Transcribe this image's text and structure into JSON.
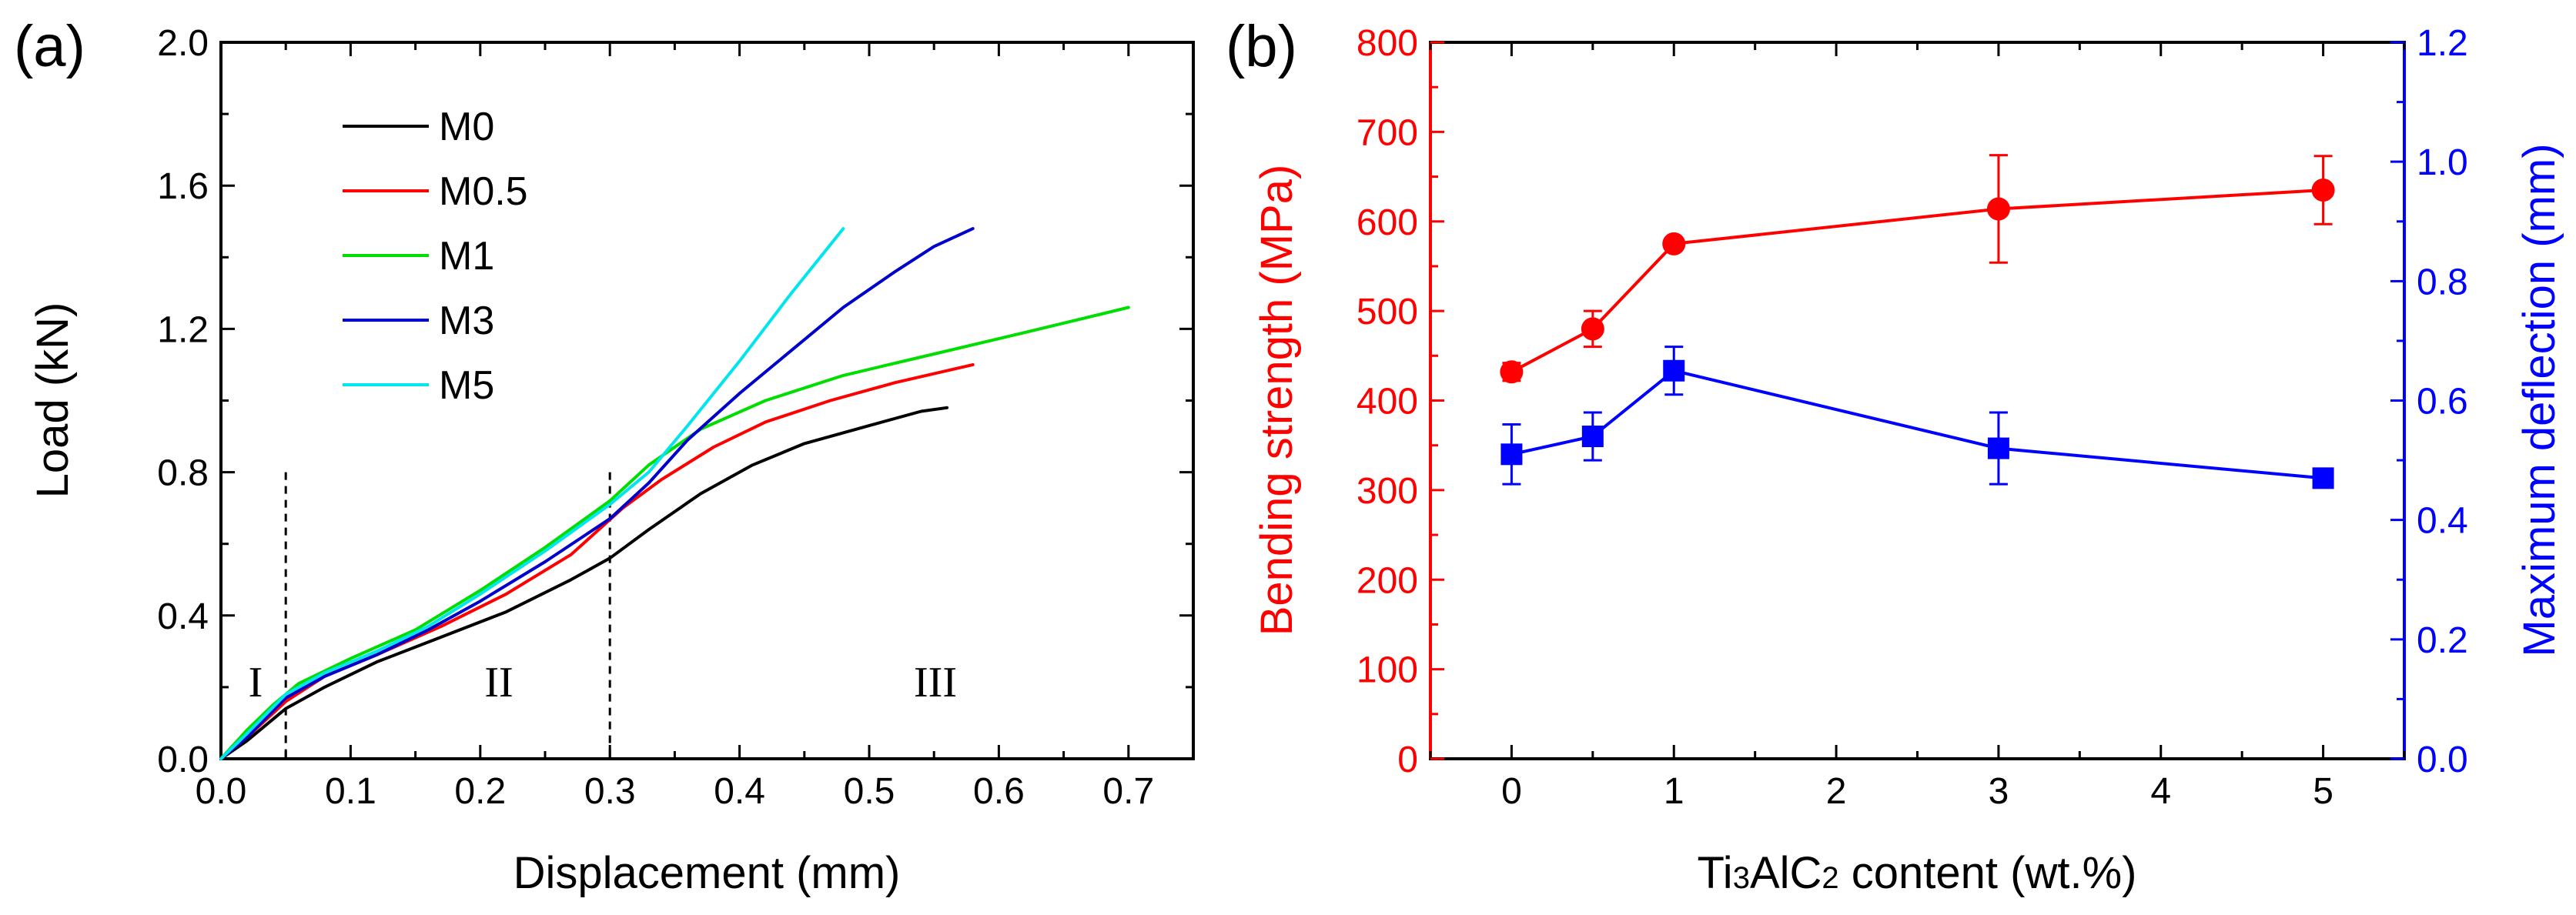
{
  "panel_a": {
    "label": "(a)",
    "region_labels": [
      "I",
      "II",
      "III"
    ],
    "chart_data": {
      "type": "line",
      "title": "",
      "xlabel": "Displacement (mm)",
      "ylabel": "Load (kN)",
      "xlim": [
        0,
        0.75
      ],
      "ylim": [
        0,
        2.0
      ],
      "x_ticks": [
        "0.0",
        "0.1",
        "0.2",
        "0.3",
        "0.4",
        "0.5",
        "0.6",
        "0.7"
      ],
      "y_ticks": [
        "0.0",
        "0.4",
        "0.8",
        "1.2",
        "1.6",
        "2.0"
      ],
      "legend_position": "top-left",
      "region_boundaries": [
        0.05,
        0.3
      ],
      "series": [
        {
          "name": "M0",
          "color": "#000000",
          "x": [
            0,
            0.02,
            0.05,
            0.08,
            0.12,
            0.17,
            0.22,
            0.27,
            0.3,
            0.33,
            0.37,
            0.41,
            0.45,
            0.5,
            0.54,
            0.56
          ],
          "y": [
            0,
            0.05,
            0.14,
            0.2,
            0.27,
            0.34,
            0.41,
            0.5,
            0.56,
            0.64,
            0.74,
            0.82,
            0.88,
            0.93,
            0.97,
            0.98
          ]
        },
        {
          "name": "M0.5",
          "color": "#ff0000",
          "x": [
            0,
            0.02,
            0.05,
            0.08,
            0.12,
            0.17,
            0.22,
            0.27,
            0.31,
            0.34,
            0.38,
            0.42,
            0.47,
            0.52,
            0.58
          ],
          "y": [
            0,
            0.06,
            0.16,
            0.23,
            0.29,
            0.37,
            0.46,
            0.57,
            0.7,
            0.78,
            0.87,
            0.94,
            1.0,
            1.05,
            1.1
          ]
        },
        {
          "name": "M1",
          "color": "#00dd00",
          "x": [
            0,
            0.02,
            0.04,
            0.06,
            0.1,
            0.15,
            0.2,
            0.25,
            0.3,
            0.33,
            0.37,
            0.42,
            0.48,
            0.55,
            0.62,
            0.7
          ],
          "y": [
            0,
            0.08,
            0.15,
            0.21,
            0.28,
            0.36,
            0.47,
            0.59,
            0.72,
            0.82,
            0.92,
            1.0,
            1.07,
            1.13,
            1.19,
            1.26
          ]
        },
        {
          "name": "M3",
          "color": "#0000cc",
          "x": [
            0,
            0.02,
            0.05,
            0.08,
            0.12,
            0.16,
            0.2,
            0.25,
            0.3,
            0.33,
            0.36,
            0.4,
            0.44,
            0.48,
            0.52,
            0.55,
            0.58
          ],
          "y": [
            0,
            0.06,
            0.17,
            0.23,
            0.29,
            0.36,
            0.44,
            0.55,
            0.67,
            0.77,
            0.89,
            1.02,
            1.14,
            1.26,
            1.36,
            1.43,
            1.48
          ]
        },
        {
          "name": "M5",
          "color": "#00e5ee",
          "x": [
            0,
            0.02,
            0.05,
            0.08,
            0.12,
            0.16,
            0.2,
            0.25,
            0.3,
            0.33,
            0.36,
            0.4,
            0.44,
            0.48
          ],
          "y": [
            0,
            0.07,
            0.18,
            0.24,
            0.3,
            0.37,
            0.46,
            0.58,
            0.71,
            0.8,
            0.93,
            1.11,
            1.3,
            1.48
          ]
        }
      ]
    }
  },
  "panel_b": {
    "label": "(b)",
    "chart_data": {
      "type": "line",
      "title": "",
      "xlabel_parts": [
        "Ti",
        "3",
        "AlC",
        "2",
        " content (wt.%)"
      ],
      "ylabel_left": "Bending strength (MPa)",
      "ylabel_right": "Maximum deflection (mm)",
      "xlim": [
        -0.5,
        5.5
      ],
      "ylim_left": [
        0,
        800
      ],
      "ylim_right": [
        0,
        1.2
      ],
      "x_ticks": [
        "0",
        "1",
        "2",
        "3",
        "4",
        "5"
      ],
      "y_ticks_left": [
        "0",
        "100",
        "200",
        "300",
        "400",
        "500",
        "600",
        "700",
        "800"
      ],
      "y_ticks_right": [
        "0.0",
        "0.2",
        "0.4",
        "0.6",
        "0.8",
        "1.0",
        "1.2"
      ],
      "x_categories": [
        "0",
        "0.5",
        "1",
        "3",
        "5"
      ],
      "series": [
        {
          "name": "Bending strength",
          "axis": "left",
          "color": "#ff0000",
          "marker": "circle",
          "x": [
            0,
            0.5,
            1,
            3,
            5
          ],
          "y": [
            432,
            480,
            575,
            614,
            635
          ],
          "err": [
            10,
            20,
            0,
            60,
            38
          ]
        },
        {
          "name": "Maximum deflection",
          "axis": "right",
          "color": "#0000ff",
          "marker": "square",
          "x": [
            0,
            0.5,
            1,
            3,
            5
          ],
          "y": [
            0.51,
            0.54,
            0.65,
            0.52,
            0.47
          ],
          "err": [
            0.05,
            0.04,
            0.04,
            0.06,
            0.01
          ]
        }
      ]
    }
  }
}
